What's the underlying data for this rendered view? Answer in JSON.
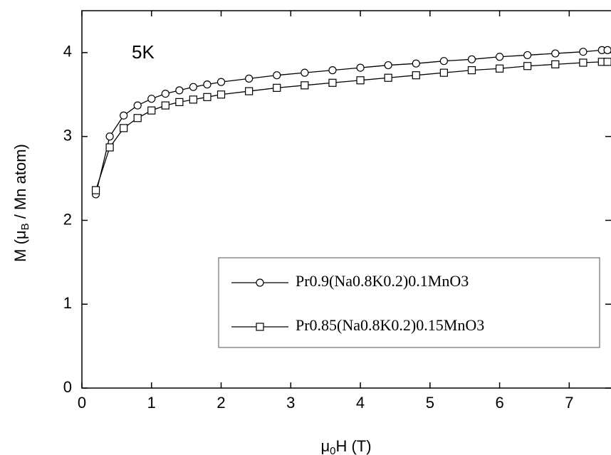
{
  "chart_data": {
    "type": "line",
    "annotation": "5K",
    "xlabel_parts": [
      "μ",
      "0",
      "H (T)"
    ],
    "ylabel_parts": [
      "M (μ",
      "B",
      " / Mn atom)"
    ],
    "x": [
      0.2,
      0.4,
      0.6,
      0.8,
      1.0,
      1.2,
      1.4,
      1.6,
      1.8,
      2.0,
      2.4,
      2.8,
      3.2,
      3.6,
      4.0,
      4.4,
      4.8,
      5.2,
      5.6,
      6.0,
      6.4,
      6.8,
      7.2,
      7.47,
      7.55
    ],
    "series": [
      {
        "name": "Pr0.9(Na0.8K0.2)0.1MnO3",
        "color": "#000000",
        "marker": "circle",
        "values": [
          2.31,
          3.0,
          3.25,
          3.37,
          3.45,
          3.51,
          3.55,
          3.59,
          3.62,
          3.65,
          3.69,
          3.73,
          3.76,
          3.79,
          3.82,
          3.85,
          3.87,
          3.9,
          3.92,
          3.95,
          3.97,
          3.99,
          4.01,
          4.03,
          4.03
        ]
      },
      {
        "name": "Pr0.85(Na0.8K0.2)0.15MnO3",
        "color": "#000000",
        "marker": "square",
        "values": [
          2.36,
          2.87,
          3.1,
          3.22,
          3.31,
          3.37,
          3.41,
          3.44,
          3.47,
          3.5,
          3.54,
          3.58,
          3.61,
          3.64,
          3.67,
          3.7,
          3.73,
          3.76,
          3.79,
          3.81,
          3.84,
          3.86,
          3.88,
          3.89,
          3.89
        ]
      }
    ],
    "xlim": [
      0,
      7.6
    ],
    "ylim": [
      0,
      4.5
    ],
    "xticks": [
      0,
      1,
      2,
      3,
      4,
      5,
      6,
      7
    ],
    "yticks": [
      0,
      1,
      2,
      3,
      4
    ],
    "legend": "lower right"
  }
}
